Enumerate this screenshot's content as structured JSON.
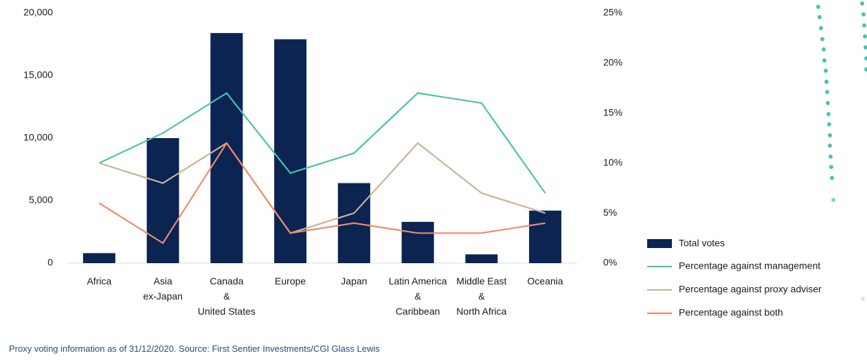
{
  "chart_data": {
    "type": "bar",
    "categories": [
      "Africa",
      "Asia\nex-Japan",
      "Canada\n&\nUnited States",
      "Europe",
      "Japan",
      "Latin America\n&\nCaribbean",
      "Middle East\n&\nNorth Africa",
      "Oceania"
    ],
    "series": [
      {
        "name": "Total votes",
        "type": "bar",
        "color": "#0b2452",
        "values": [
          800,
          10000,
          18400,
          17900,
          6400,
          3300,
          700,
          4200
        ]
      },
      {
        "name": "Percentage against management",
        "type": "line",
        "axis": "y2",
        "color": "#4cc1ad",
        "values": [
          10,
          13,
          17,
          9,
          11,
          17,
          16,
          7
        ]
      },
      {
        "name": "Percentage against proxy adviser",
        "type": "line",
        "axis": "y2",
        "color": "#c8b493",
        "values": [
          10,
          8,
          12,
          3,
          5,
          12,
          7,
          5
        ]
      },
      {
        "name": "Percentage against both",
        "type": "line",
        "axis": "y2",
        "color": "#ee8a6a",
        "values": [
          6,
          2,
          12,
          3,
          4,
          3,
          3,
          4
        ]
      }
    ],
    "ylim": [
      0,
      20000
    ],
    "yticks": [
      0,
      {
        "value": 5000,
        "label": "5,000"
      },
      {
        "value": 10000,
        "label": "10,000"
      },
      {
        "value": 15000,
        "label": "15,000"
      },
      {
        "value": 20000,
        "label": "20,000"
      }
    ],
    "y2lim": [
      0,
      25
    ],
    "y2ticks": [
      {
        "value": 0,
        "label": "0%"
      },
      {
        "value": 5,
        "label": "5%"
      },
      {
        "value": 10,
        "label": "10%"
      },
      {
        "value": 15,
        "label": "15%"
      },
      {
        "value": 20,
        "label": "20%"
      },
      {
        "value": 25,
        "label": "25%"
      }
    ],
    "legend": "right",
    "note": "Proxy voting information as of 31/12/2020. Source: First Sentier Investments/CGI Glass Lewis"
  }
}
